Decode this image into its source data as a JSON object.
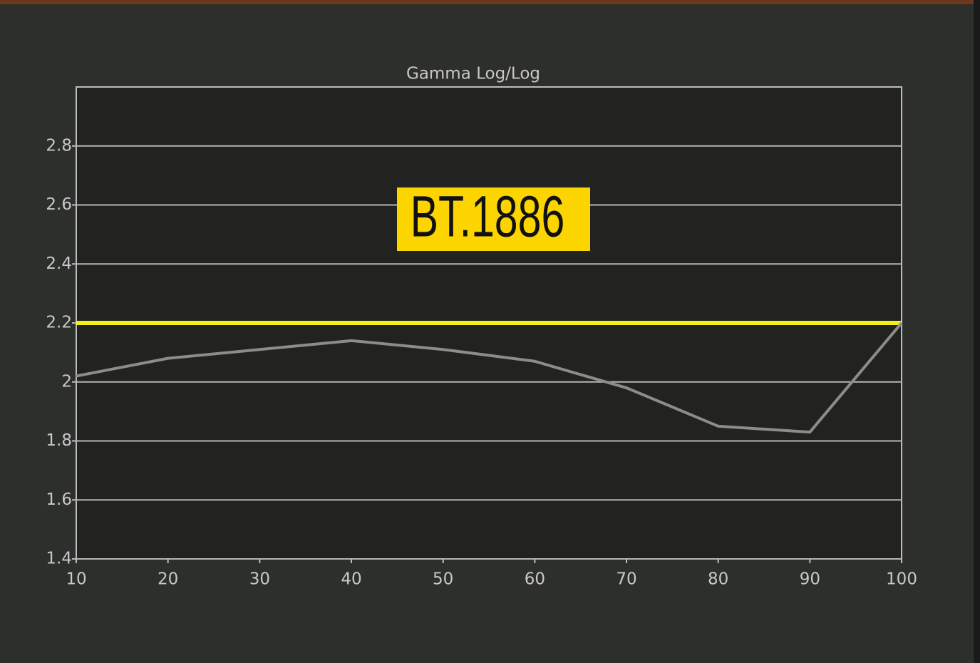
{
  "chart_data": {
    "type": "line",
    "title": "Gamma Log/Log",
    "x": [
      10,
      20,
      30,
      40,
      50,
      60,
      70,
      80,
      90,
      100
    ],
    "series": [
      {
        "color": "#f2ee1a",
        "values": [
          2.2,
          2.2,
          2.2,
          2.2,
          2.2,
          2.2,
          2.2,
          2.2,
          2.2,
          2.2
        ]
      },
      {
        "color": "#8c8c8a",
        "values": [
          2.02,
          2.08,
          2.11,
          2.14,
          2.11,
          2.07,
          1.98,
          1.85,
          1.83,
          2.2
        ]
      }
    ],
    "xlim": [
      10,
      100
    ],
    "xticks": [
      10,
      20,
      30,
      40,
      50,
      60,
      70,
      80,
      90,
      100
    ],
    "ylim": [
      1.4,
      3.0
    ],
    "yticks": [
      1.4,
      1.6,
      1.8,
      2,
      2.2,
      2.4,
      2.6,
      2.8
    ],
    "grid": true,
    "annotation": "BT.1886"
  }
}
